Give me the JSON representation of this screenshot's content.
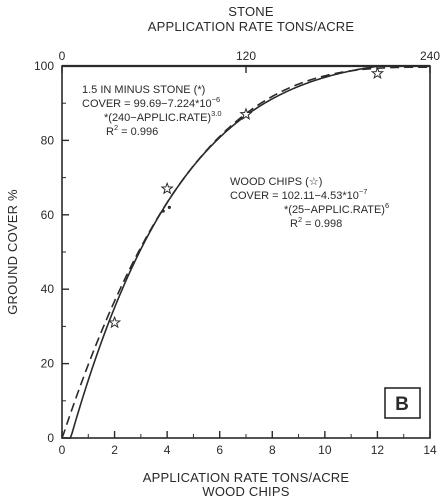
{
  "chart_data": {
    "type": "line",
    "top_axis": {
      "title_line1": "STONE",
      "title_line2": "APPLICATION RATE TONS/ACRE",
      "range": [
        0,
        240
      ],
      "ticks": [
        "0",
        "120",
        "240"
      ]
    },
    "bottom_axis": {
      "title_line1": "APPLICATION RATE TONS/ACRE",
      "title_line2": "WOOD CHIPS",
      "range": [
        0,
        14
      ],
      "ticks": [
        "0",
        "2",
        "4",
        "6",
        "8",
        "10",
        "12",
        "14"
      ]
    },
    "y_axis": {
      "title": "GROUND COVER %",
      "range": [
        0,
        100
      ],
      "ticks": [
        "0",
        "20",
        "40",
        "60",
        "80",
        "100"
      ]
    },
    "panel_label": "B",
    "reference_lines": [
      {
        "y": 100
      }
    ],
    "series": [
      {
        "name": "1.5 IN MINUS STONE (*)",
        "axis": "top",
        "line_style": "dashed",
        "model": {
          "a": 99.69,
          "b": 7.224e-06,
          "limit": 240,
          "power": 3.0
        },
        "points": [
          {
            "x": 66,
            "y": 61
          },
          {
            "x": 70,
            "y": 62
          }
        ]
      },
      {
        "name": "WOOD CHIPS (☆)",
        "axis": "bottom",
        "line_style": "solid",
        "model": {
          "a": 102.11,
          "b": 4.53e-07,
          "limit": 25,
          "power": 6
        },
        "points": [
          {
            "x": 2,
            "y": 31
          },
          {
            "x": 4,
            "y": 67
          },
          {
            "x": 7,
            "y": 87
          },
          {
            "x": 12,
            "y": 98
          }
        ]
      }
    ],
    "annotations": {
      "stone": {
        "line1": "1.5 IN MINUS STONE (*)",
        "line2": "COVER = 99.69−7.224*10",
        "line2_exp": "−6",
        "line3": "*(240−APPLIC.RATE)",
        "line3_exp": "3.0",
        "line4_pre": "R",
        "line4_exp": "2",
        "line4_post": " = 0.996"
      },
      "wood": {
        "line1": "WOOD CHIPS (☆)",
        "line2": "COVER = 102.11−4.53*10",
        "line2_exp": "−7",
        "line3": "*(25−APPLIC.RATE)",
        "line3_exp": "6",
        "line4_pre": "R",
        "line4_exp": "2",
        "line4_post": " = 0.998"
      }
    }
  }
}
